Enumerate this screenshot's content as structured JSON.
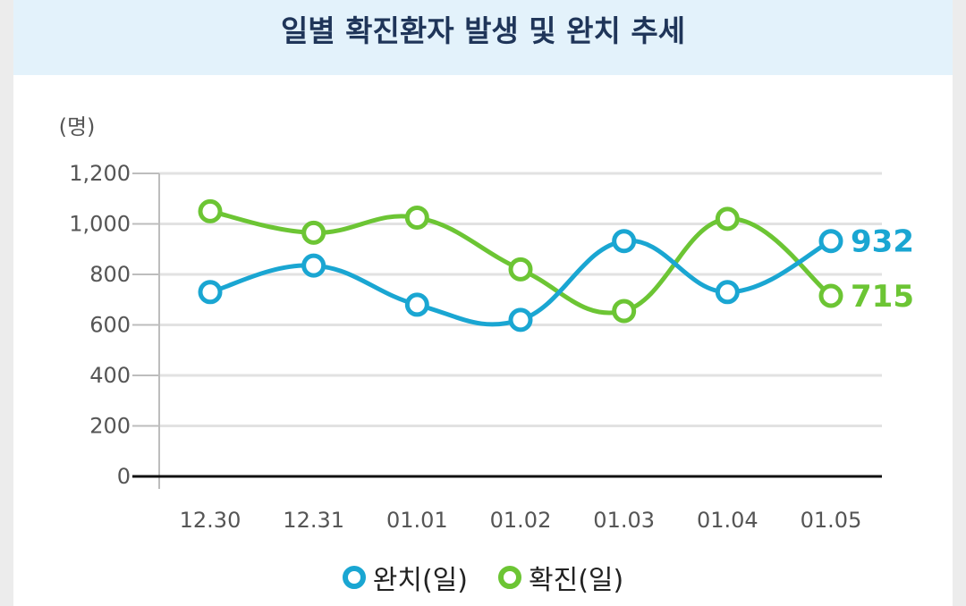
{
  "header": {
    "title": "일별 확진환자 발생 및 완치 추세"
  },
  "colors": {
    "recovered": "#1aa6d2",
    "confirmed": "#6cc534"
  },
  "chart_data": {
    "type": "line",
    "title": "일별 확진환자 발생 및 완치 추세",
    "unit_label": "(명)",
    "categories": [
      "12.30",
      "12.31",
      "01.01",
      "01.02",
      "01.03",
      "01.04",
      "01.05"
    ],
    "ylim": [
      0,
      1200
    ],
    "yticks": [
      0,
      200,
      400,
      600,
      800,
      1000,
      1200
    ],
    "ytick_labels": [
      "0",
      "200",
      "400",
      "600",
      "800",
      "1,000",
      "1,200"
    ],
    "grid": true,
    "series": [
      {
        "key": "recovered",
        "name": "완치(일)",
        "values": [
          730,
          835,
          680,
          620,
          932,
          730,
          932
        ],
        "end_label": "932"
      },
      {
        "key": "confirmed",
        "name": "확진(일)",
        "values": [
          1050,
          965,
          1025,
          820,
          655,
          1020,
          715
        ],
        "end_label": "715"
      }
    ]
  }
}
